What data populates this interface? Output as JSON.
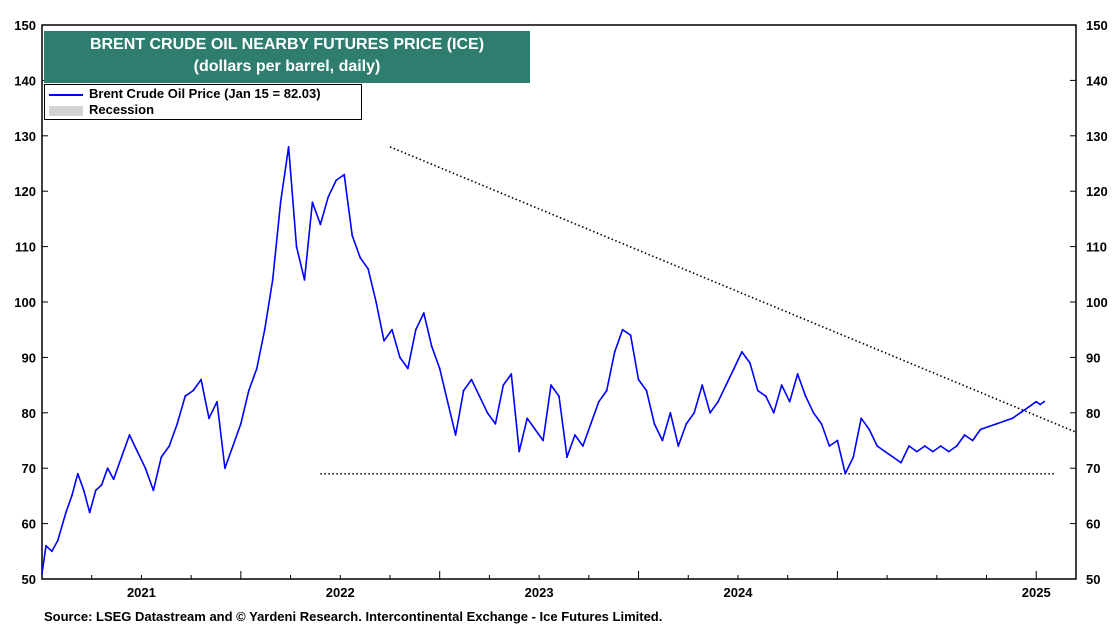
{
  "title_line1": "BRENT CRUDE OIL NEARBY FUTURES  PRICE (ICE)",
  "title_line2": "(dollars per barrel, daily)",
  "legend": {
    "series_label": "Brent Crude Oil Price (Jan 15 = 82.03)",
    "recession_label": "Recession"
  },
  "source": "Source: LSEG Datastream and © Yardeni Research. Intercontinental Exchange - Ice Futures Limited.",
  "colors": {
    "series": "#0000ff",
    "title_bg": "#2e7d6f",
    "recession": "#d3d3d3",
    "trend": "#000000"
  },
  "chart_data": {
    "type": "line",
    "title": "BRENT CRUDE OIL NEARBY FUTURES  PRICE (ICE)",
    "subtitle": "(dollars per barrel, daily)",
    "xlabel": "",
    "ylabel": "",
    "xlim": [
      2020.0,
      2025.2
    ],
    "ylim": [
      50,
      150
    ],
    "yticks": [
      50,
      60,
      70,
      80,
      90,
      100,
      110,
      120,
      130,
      140,
      150
    ],
    "xtick_labels": [
      "2021",
      "2022",
      "2023",
      "2024",
      "2025"
    ],
    "x_boundaries": [
      2021.0,
      2022.0,
      2023.0,
      2024.0,
      2025.0
    ],
    "grid": false,
    "legend_placement": "top-left",
    "series": [
      {
        "name": "Brent Crude Oil Price (Jan 15 = 82.03)",
        "x": [
          2020.0,
          2020.02,
          2020.05,
          2020.08,
          2020.12,
          2020.15,
          2020.18,
          2020.21,
          2020.24,
          2020.27,
          2020.3,
          2020.33,
          2020.36,
          2020.4,
          2020.44,
          2020.48,
          2020.52,
          2020.56,
          2020.6,
          2020.64,
          2020.68,
          2020.72,
          2020.76,
          2020.8,
          2020.84,
          2020.88,
          2020.92,
          2020.96,
          2021.0,
          2021.04,
          2021.08,
          2021.12,
          2021.16,
          2021.2,
          2021.24,
          2021.28,
          2021.32,
          2021.36,
          2021.4,
          2021.44,
          2021.48,
          2021.52,
          2021.56,
          2021.6,
          2021.64,
          2021.68,
          2021.72,
          2021.76,
          2021.8,
          2021.84,
          2021.88,
          2021.92,
          2021.96,
          2022.0,
          2022.04,
          2022.08,
          2022.12,
          2022.16,
          2022.2,
          2022.24,
          2022.28,
          2022.32,
          2022.36,
          2022.4,
          2022.44,
          2022.48,
          2022.52,
          2022.56,
          2022.6,
          2022.64,
          2022.68,
          2022.72,
          2022.76,
          2022.8,
          2022.84,
          2022.88,
          2022.92,
          2022.96,
          2023.0,
          2023.04,
          2023.08,
          2023.12,
          2023.16,
          2023.2,
          2023.24,
          2023.28,
          2023.32,
          2023.36,
          2023.4,
          2023.44,
          2023.48,
          2023.52,
          2023.56,
          2023.6,
          2023.64,
          2023.68,
          2023.72,
          2023.76,
          2023.8,
          2023.84,
          2023.88,
          2023.92,
          2023.96,
          2024.0,
          2024.04,
          2024.08,
          2024.12,
          2024.16,
          2024.2,
          2024.24,
          2024.28,
          2024.32,
          2024.36,
          2024.4,
          2024.44,
          2024.48,
          2024.52,
          2024.56,
          2024.6,
          2024.64,
          2024.68,
          2024.72,
          2024.76,
          2024.8,
          2024.84,
          2024.88,
          2024.92,
          2024.96,
          2025.0,
          2025.02,
          2025.04
        ],
        "values": [
          51,
          56,
          55,
          57,
          62,
          65,
          69,
          66,
          62,
          66,
          67,
          70,
          68,
          72,
          76,
          73,
          70,
          66,
          72,
          74,
          78,
          83,
          84,
          86,
          79,
          82,
          70,
          74,
          78,
          84,
          88,
          95,
          104,
          118,
          128,
          110,
          104,
          118,
          114,
          119,
          122,
          123,
          112,
          108,
          106,
          100,
          93,
          95,
          90,
          88,
          95,
          98,
          92,
          88,
          82,
          76,
          84,
          86,
          83,
          80,
          78,
          85,
          87,
          73,
          79,
          77,
          75,
          85,
          83,
          72,
          76,
          74,
          78,
          82,
          84,
          91,
          95,
          94,
          86,
          84,
          78,
          75,
          80,
          74,
          78,
          80,
          85,
          80,
          82,
          85,
          88,
          91,
          89,
          84,
          83,
          80,
          85,
          82,
          87,
          83,
          80,
          78,
          74,
          75,
          69,
          72,
          79,
          77,
          74,
          73,
          72,
          71,
          74,
          73,
          74,
          73,
          74,
          73,
          74,
          76,
          75,
          77,
          77.5,
          78,
          78.5,
          79,
          80,
          81,
          82,
          81.5,
          82.03
        ]
      }
    ],
    "trendlines": [
      {
        "style": "dotted",
        "x": [
          2021.75,
          2025.2
        ],
        "y": [
          128,
          76.5
        ]
      },
      {
        "style": "dotted",
        "x": [
          2021.4,
          2025.1
        ],
        "y": [
          69,
          69
        ]
      }
    ]
  }
}
